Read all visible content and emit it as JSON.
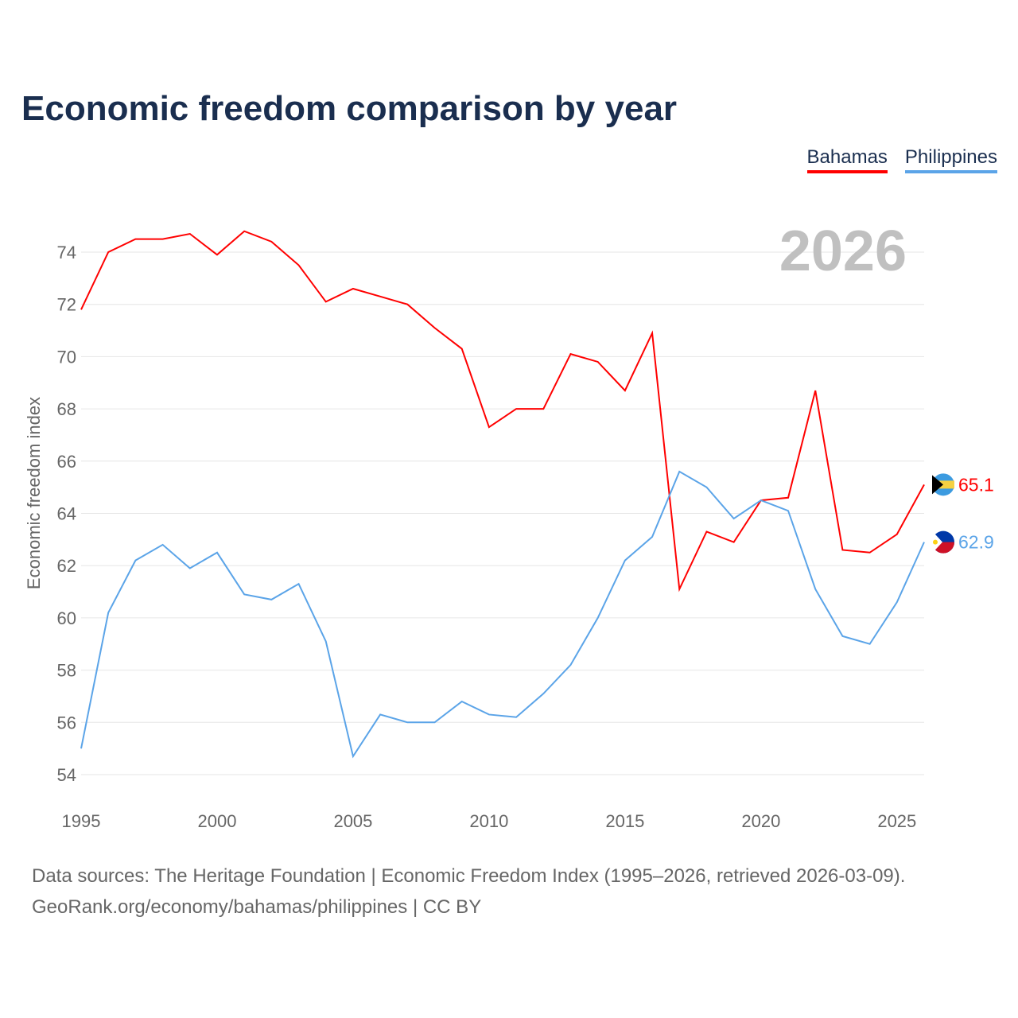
{
  "title": "Economic freedom comparison by year",
  "footer": {
    "line1": "Data sources: The Heritage Foundation | Economic Freedom Index (1995–2026, retrieved 2026-03-09).",
    "line2": "GeoRank.org/economy/bahamas/philippines | CC BY"
  },
  "chart_data": {
    "type": "line",
    "title": "Economic freedom comparison by year",
    "ylabel": "Economic freedom index",
    "xlabel": "",
    "year_watermark": "2026",
    "xlim": [
      1995,
      2026
    ],
    "ylim": [
      54,
      74
    ],
    "xticks": [
      1995,
      2000,
      2005,
      2010,
      2015,
      2020,
      2025
    ],
    "yticks": [
      54,
      56,
      58,
      60,
      62,
      64,
      66,
      68,
      70,
      72,
      74
    ],
    "grid": true,
    "legend": "top-right",
    "x": [
      1995,
      1996,
      1997,
      1998,
      1999,
      2000,
      2001,
      2002,
      2003,
      2004,
      2005,
      2006,
      2007,
      2008,
      2009,
      2010,
      2011,
      2012,
      2013,
      2014,
      2015,
      2016,
      2017,
      2018,
      2019,
      2020,
      2021,
      2022,
      2023,
      2024,
      2025,
      2026
    ],
    "series": [
      {
        "name": "Bahamas",
        "color": "#ff0000",
        "end_label": "65.1",
        "flag": "bahamas-flag",
        "values": [
          71.8,
          74.0,
          74.5,
          74.5,
          74.7,
          73.9,
          74.8,
          74.4,
          73.5,
          72.1,
          72.6,
          72.3,
          72.0,
          71.1,
          70.3,
          67.3,
          68.0,
          68.0,
          70.1,
          69.8,
          68.7,
          70.9,
          61.1,
          63.3,
          62.9,
          64.5,
          64.6,
          68.7,
          62.6,
          62.5,
          63.2,
          65.1
        ]
      },
      {
        "name": "Philippines",
        "color": "#5ba4e8",
        "end_label": "62.9",
        "flag": "philippines-flag",
        "values": [
          55.0,
          60.2,
          62.2,
          62.8,
          61.9,
          62.5,
          60.9,
          60.7,
          61.3,
          59.1,
          54.7,
          56.3,
          56.0,
          56.0,
          56.8,
          56.3,
          56.2,
          57.1,
          58.2,
          60.0,
          62.2,
          63.1,
          65.6,
          65.0,
          63.8,
          64.5,
          64.1,
          61.1,
          59.3,
          59.0,
          60.6,
          62.9
        ]
      }
    ]
  }
}
